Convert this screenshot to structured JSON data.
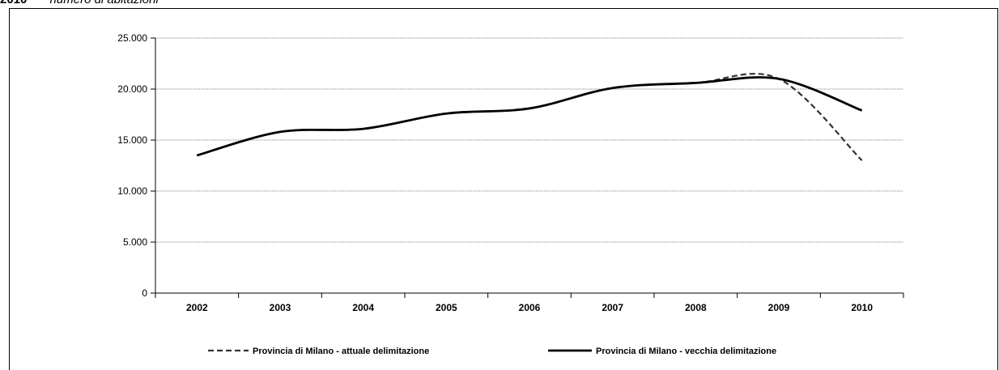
{
  "caption": {
    "year": "2010",
    "unit": "numero di abitazioni"
  },
  "chart_data": {
    "type": "line",
    "title": "",
    "xlabel": "",
    "ylabel": "",
    "categories": [
      "2002",
      "2003",
      "2004",
      "2005",
      "2006",
      "2007",
      "2008",
      "2009",
      "2010"
    ],
    "ylim": [
      0,
      25000
    ],
    "y_ticks": [
      0,
      5000,
      10000,
      15000,
      20000,
      25000
    ],
    "y_tick_labels": [
      "0",
      "5.000",
      "10.000",
      "15.000",
      "20.000",
      "25.000"
    ],
    "grid": true,
    "legend_position": "bottom",
    "series": [
      {
        "name": "Provincia di Milano - attuale delimitazione",
        "style": "dashed",
        "color": "#333333",
        "values": [
          13500,
          15800,
          16100,
          17600,
          18100,
          20100,
          20600,
          21000,
          13000
        ]
      },
      {
        "name": "Provincia di Milano - vecchia delimitazione",
        "style": "solid",
        "color": "#000000",
        "values": [
          13500,
          15800,
          16100,
          17600,
          18100,
          20100,
          20600,
          21000,
          17900
        ]
      }
    ]
  }
}
